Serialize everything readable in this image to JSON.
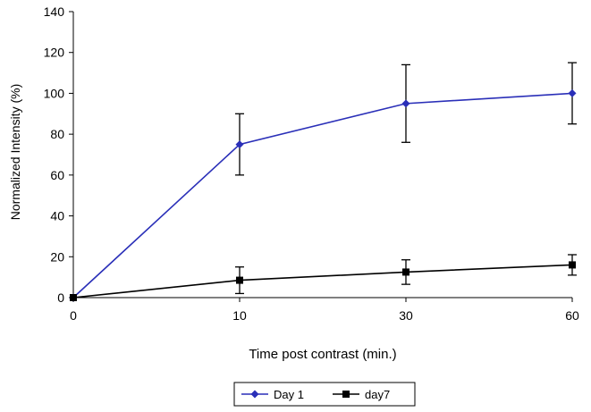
{
  "chart_data": {
    "type": "line",
    "title": "",
    "xlabel": "Time post contrast (min.)",
    "ylabel": "Normalized Intensity (%)",
    "categories": [
      "0",
      "10",
      "30",
      "60"
    ],
    "ylim": [
      0,
      140
    ],
    "yticks": [
      "0",
      "20",
      "40",
      "60",
      "80",
      "100",
      "120",
      "140"
    ],
    "grid": false,
    "legend_position": "bottom",
    "series": [
      {
        "name": "Day 1",
        "color": "#2a2fb8",
        "marker": "diamond",
        "values": [
          0,
          75,
          95,
          100
        ],
        "error": [
          0,
          15,
          19,
          15
        ]
      },
      {
        "name": "day7",
        "color": "#000000",
        "marker": "square",
        "values": [
          0,
          8.5,
          12.5,
          16
        ],
        "error": [
          0,
          6.5,
          6,
          5
        ]
      }
    ]
  }
}
